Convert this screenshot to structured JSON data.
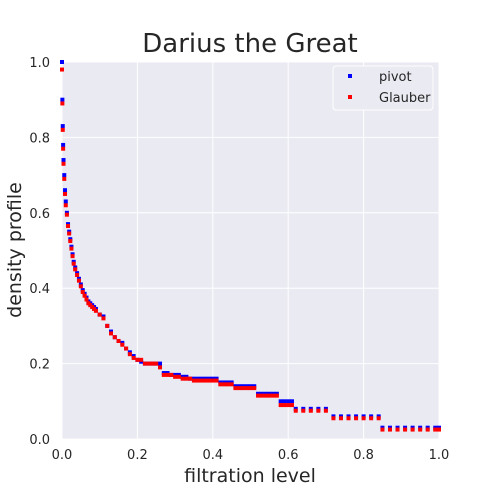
{
  "chart_data": {
    "type": "scatter",
    "title": "Darius the Great",
    "xlabel": "filtration level",
    "ylabel": "density profile",
    "xlim": [
      0.0,
      1.0
    ],
    "ylim": [
      0.0,
      1.0
    ],
    "xticks": [
      "0.0",
      "0.2",
      "0.4",
      "0.6",
      "0.8",
      "1.0"
    ],
    "yticks": [
      "0.0",
      "0.2",
      "0.4",
      "0.6",
      "0.8",
      "1.0"
    ],
    "grid": true,
    "legend_position": "top-right",
    "background_color": "#eaeaf2",
    "series": [
      {
        "name": "pivot",
        "color": "#0000ff",
        "points": [
          [
            0.0,
            1.0
          ],
          [
            0.001,
            0.9
          ],
          [
            0.002,
            0.83
          ],
          [
            0.003,
            0.78
          ],
          [
            0.004,
            0.74
          ],
          [
            0.006,
            0.7
          ],
          [
            0.008,
            0.66
          ],
          [
            0.01,
            0.63
          ],
          [
            0.013,
            0.6
          ],
          [
            0.016,
            0.57
          ],
          [
            0.019,
            0.55
          ],
          [
            0.022,
            0.53
          ],
          [
            0.025,
            0.51
          ],
          [
            0.028,
            0.49
          ],
          [
            0.031,
            0.47
          ],
          [
            0.035,
            0.455
          ],
          [
            0.04,
            0.44
          ],
          [
            0.045,
            0.425
          ],
          [
            0.05,
            0.41
          ],
          [
            0.055,
            0.395
          ],
          [
            0.06,
            0.385
          ],
          [
            0.065,
            0.375
          ],
          [
            0.07,
            0.365
          ],
          [
            0.075,
            0.36
          ],
          [
            0.08,
            0.355
          ],
          [
            0.085,
            0.35
          ],
          [
            0.09,
            0.345
          ],
          [
            0.1,
            0.33
          ],
          [
            0.11,
            0.325
          ],
          [
            0.12,
            0.3
          ],
          [
            0.13,
            0.285
          ],
          [
            0.14,
            0.27
          ],
          [
            0.15,
            0.26
          ],
          [
            0.16,
            0.255
          ],
          [
            0.17,
            0.24
          ],
          [
            0.18,
            0.23
          ],
          [
            0.19,
            0.22
          ],
          [
            0.2,
            0.21
          ],
          [
            0.21,
            0.205
          ],
          [
            0.22,
            0.2
          ],
          [
            0.23,
            0.2
          ],
          [
            0.24,
            0.2
          ],
          [
            0.25,
            0.2
          ],
          [
            0.26,
            0.2
          ],
          [
            0.27,
            0.175
          ],
          [
            0.28,
            0.175
          ],
          [
            0.29,
            0.17
          ],
          [
            0.3,
            0.17
          ],
          [
            0.31,
            0.17
          ],
          [
            0.32,
            0.165
          ],
          [
            0.33,
            0.165
          ],
          [
            0.34,
            0.16
          ],
          [
            0.35,
            0.16
          ],
          [
            0.36,
            0.16
          ],
          [
            0.37,
            0.16
          ],
          [
            0.38,
            0.16
          ],
          [
            0.39,
            0.16
          ],
          [
            0.4,
            0.16
          ],
          [
            0.41,
            0.16
          ],
          [
            0.42,
            0.15
          ],
          [
            0.43,
            0.15
          ],
          [
            0.44,
            0.15
          ],
          [
            0.45,
            0.15
          ],
          [
            0.46,
            0.14
          ],
          [
            0.47,
            0.14
          ],
          [
            0.48,
            0.14
          ],
          [
            0.49,
            0.14
          ],
          [
            0.5,
            0.14
          ],
          [
            0.51,
            0.14
          ],
          [
            0.52,
            0.12
          ],
          [
            0.53,
            0.12
          ],
          [
            0.54,
            0.12
          ],
          [
            0.55,
            0.12
          ],
          [
            0.56,
            0.12
          ],
          [
            0.57,
            0.12
          ],
          [
            0.58,
            0.1
          ],
          [
            0.59,
            0.1
          ],
          [
            0.6,
            0.1
          ],
          [
            0.61,
            0.1
          ],
          [
            0.62,
            0.08
          ],
          [
            0.64,
            0.08
          ],
          [
            0.66,
            0.08
          ],
          [
            0.68,
            0.08
          ],
          [
            0.7,
            0.08
          ],
          [
            0.72,
            0.06
          ],
          [
            0.74,
            0.06
          ],
          [
            0.76,
            0.06
          ],
          [
            0.78,
            0.06
          ],
          [
            0.8,
            0.06
          ],
          [
            0.82,
            0.06
          ],
          [
            0.84,
            0.06
          ],
          [
            0.85,
            0.03
          ],
          [
            0.87,
            0.03
          ],
          [
            0.89,
            0.03
          ],
          [
            0.91,
            0.03
          ],
          [
            0.93,
            0.03
          ],
          [
            0.95,
            0.03
          ],
          [
            0.97,
            0.03
          ],
          [
            0.99,
            0.03
          ],
          [
            1.0,
            0.03
          ]
        ]
      },
      {
        "name": "Glauber",
        "color": "#ff0000",
        "points": [
          [
            0.0,
            0.98
          ],
          [
            0.001,
            0.89
          ],
          [
            0.002,
            0.82
          ],
          [
            0.003,
            0.77
          ],
          [
            0.004,
            0.73
          ],
          [
            0.006,
            0.69
          ],
          [
            0.008,
            0.65
          ],
          [
            0.01,
            0.62
          ],
          [
            0.013,
            0.595
          ],
          [
            0.016,
            0.565
          ],
          [
            0.019,
            0.545
          ],
          [
            0.022,
            0.525
          ],
          [
            0.025,
            0.505
          ],
          [
            0.028,
            0.485
          ],
          [
            0.031,
            0.465
          ],
          [
            0.035,
            0.45
          ],
          [
            0.04,
            0.435
          ],
          [
            0.045,
            0.42
          ],
          [
            0.05,
            0.405
          ],
          [
            0.055,
            0.39
          ],
          [
            0.06,
            0.38
          ],
          [
            0.065,
            0.37
          ],
          [
            0.07,
            0.36
          ],
          [
            0.075,
            0.355
          ],
          [
            0.08,
            0.35
          ],
          [
            0.085,
            0.345
          ],
          [
            0.09,
            0.34
          ],
          [
            0.1,
            0.33
          ],
          [
            0.11,
            0.32
          ],
          [
            0.12,
            0.3
          ],
          [
            0.13,
            0.28
          ],
          [
            0.14,
            0.27
          ],
          [
            0.15,
            0.26
          ],
          [
            0.16,
            0.25
          ],
          [
            0.17,
            0.24
          ],
          [
            0.18,
            0.225
          ],
          [
            0.19,
            0.215
          ],
          [
            0.2,
            0.21
          ],
          [
            0.21,
            0.21
          ],
          [
            0.22,
            0.2
          ],
          [
            0.23,
            0.2
          ],
          [
            0.24,
            0.2
          ],
          [
            0.25,
            0.2
          ],
          [
            0.26,
            0.19
          ],
          [
            0.27,
            0.17
          ],
          [
            0.28,
            0.17
          ],
          [
            0.29,
            0.17
          ],
          [
            0.3,
            0.165
          ],
          [
            0.31,
            0.165
          ],
          [
            0.32,
            0.16
          ],
          [
            0.33,
            0.16
          ],
          [
            0.34,
            0.16
          ],
          [
            0.35,
            0.155
          ],
          [
            0.36,
            0.155
          ],
          [
            0.37,
            0.155
          ],
          [
            0.38,
            0.155
          ],
          [
            0.39,
            0.155
          ],
          [
            0.4,
            0.155
          ],
          [
            0.41,
            0.155
          ],
          [
            0.42,
            0.145
          ],
          [
            0.43,
            0.145
          ],
          [
            0.44,
            0.145
          ],
          [
            0.45,
            0.145
          ],
          [
            0.46,
            0.135
          ],
          [
            0.47,
            0.135
          ],
          [
            0.48,
            0.135
          ],
          [
            0.49,
            0.135
          ],
          [
            0.5,
            0.135
          ],
          [
            0.51,
            0.135
          ],
          [
            0.52,
            0.115
          ],
          [
            0.53,
            0.115
          ],
          [
            0.54,
            0.115
          ],
          [
            0.55,
            0.115
          ],
          [
            0.56,
            0.115
          ],
          [
            0.57,
            0.115
          ],
          [
            0.58,
            0.09
          ],
          [
            0.59,
            0.09
          ],
          [
            0.6,
            0.09
          ],
          [
            0.61,
            0.09
          ],
          [
            0.62,
            0.075
          ],
          [
            0.64,
            0.075
          ],
          [
            0.66,
            0.075
          ],
          [
            0.68,
            0.075
          ],
          [
            0.7,
            0.075
          ],
          [
            0.72,
            0.055
          ],
          [
            0.74,
            0.055
          ],
          [
            0.76,
            0.055
          ],
          [
            0.78,
            0.055
          ],
          [
            0.8,
            0.055
          ],
          [
            0.82,
            0.055
          ],
          [
            0.84,
            0.055
          ],
          [
            0.85,
            0.025
          ],
          [
            0.87,
            0.025
          ],
          [
            0.89,
            0.025
          ],
          [
            0.91,
            0.025
          ],
          [
            0.93,
            0.025
          ],
          [
            0.95,
            0.025
          ],
          [
            0.97,
            0.025
          ],
          [
            0.99,
            0.025
          ],
          [
            1.0,
            0.025
          ]
        ]
      }
    ]
  }
}
